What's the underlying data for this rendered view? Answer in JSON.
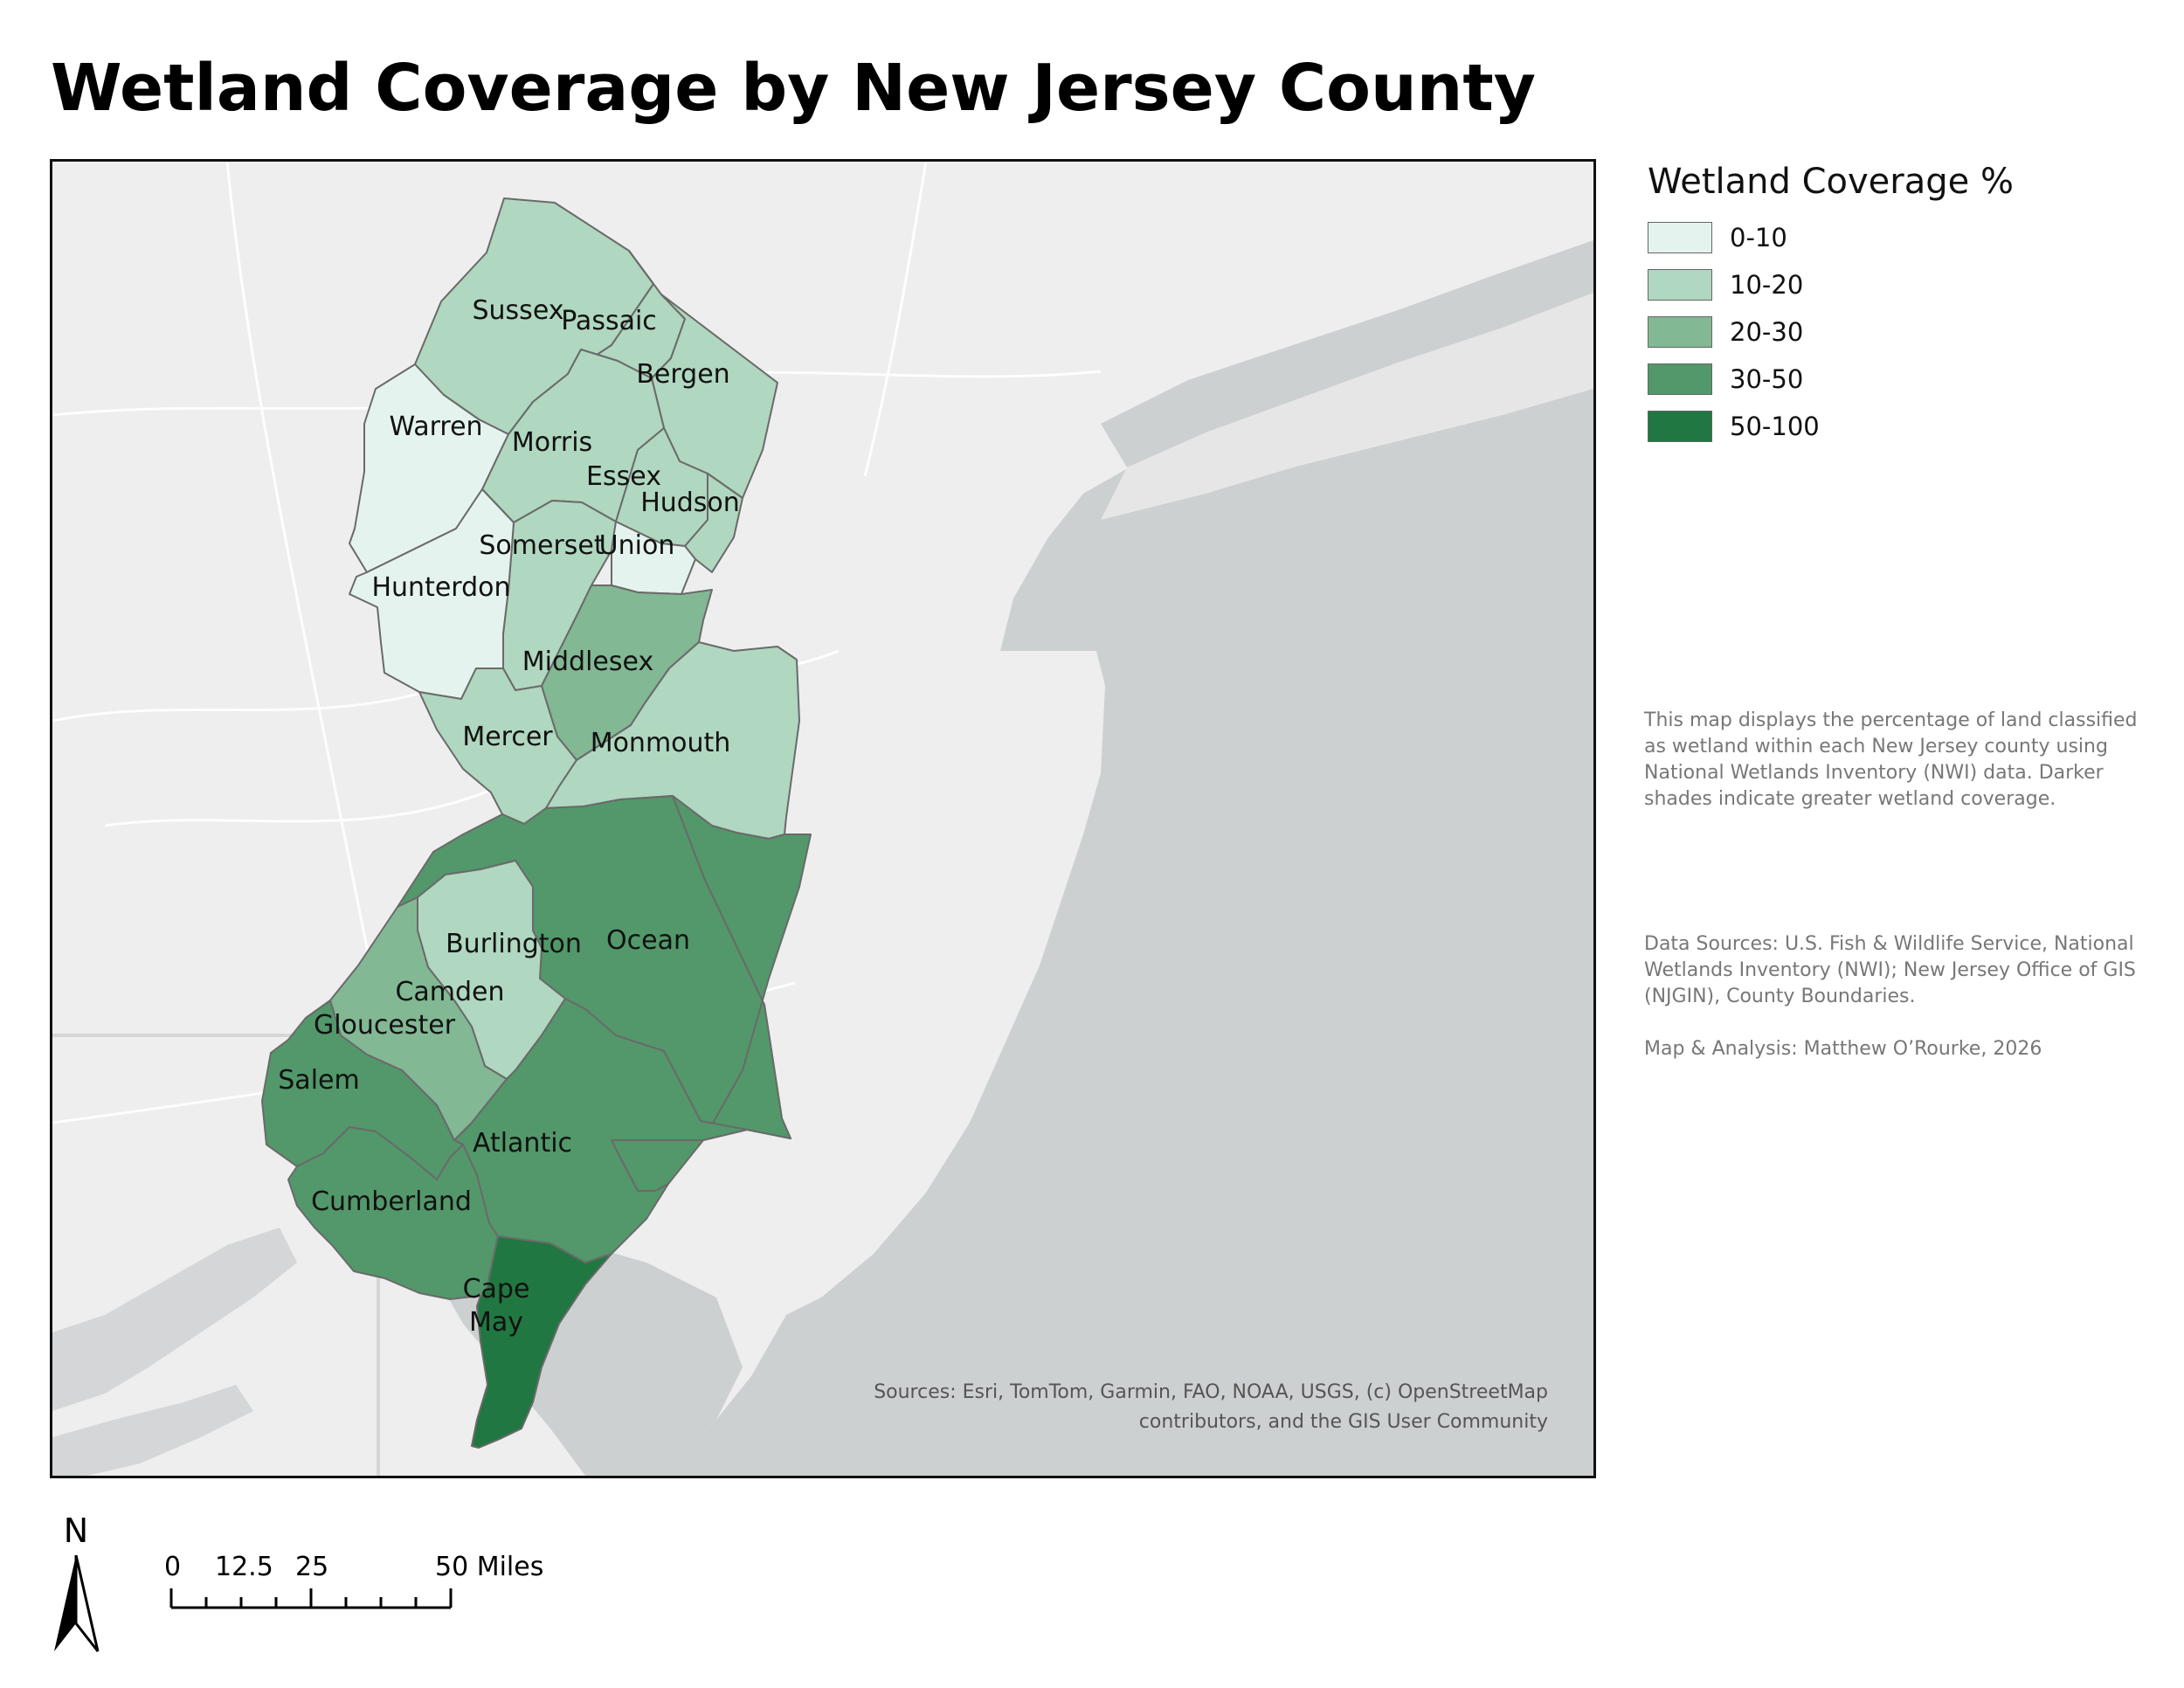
{
  "title": "Wetland Coverage by New Jersey County",
  "legend": {
    "title": "Wetland Coverage %",
    "items": [
      {
        "label": "0-10",
        "color": "#e4f3ee"
      },
      {
        "label": "10-20",
        "color": "#b0d7bf"
      },
      {
        "label": "20-30",
        "color": "#82b894"
      },
      {
        "label": "30-50",
        "color": "#52986a"
      },
      {
        "label": "50-100",
        "color": "#217741"
      }
    ]
  },
  "counties": [
    {
      "name": "Sussex",
      "label": "Sussex",
      "class": "10-20"
    },
    {
      "name": "Passaic",
      "label": "Passaic",
      "class": "10-20"
    },
    {
      "name": "Bergen",
      "label": "Bergen",
      "class": "10-20"
    },
    {
      "name": "Warren",
      "label": "Warren",
      "class": "0-10"
    },
    {
      "name": "Morris",
      "label": "Morris",
      "class": "10-20"
    },
    {
      "name": "Essex",
      "label": "Essex",
      "class": "10-20"
    },
    {
      "name": "Hudson",
      "label": "Hudson",
      "class": "10-20"
    },
    {
      "name": "Somerset",
      "label": "Somerset",
      "class": "10-20"
    },
    {
      "name": "Union",
      "label": "Union",
      "class": "0-10"
    },
    {
      "name": "Hunterdon",
      "label": "Hunterdon",
      "class": "0-10"
    },
    {
      "name": "Middlesex",
      "label": "Middlesex",
      "class": "20-30"
    },
    {
      "name": "Mercer",
      "label": "Mercer",
      "class": "10-20"
    },
    {
      "name": "Monmouth",
      "label": "Monmouth",
      "class": "10-20"
    },
    {
      "name": "Burlington",
      "label": "Burlington",
      "class": "30-50"
    },
    {
      "name": "Ocean",
      "label": "Ocean",
      "class": "30-50"
    },
    {
      "name": "Camden",
      "label": "Camden",
      "class": "10-20"
    },
    {
      "name": "Gloucester",
      "label": "Gloucester",
      "class": "20-30"
    },
    {
      "name": "Salem",
      "label": "Salem",
      "class": "30-50"
    },
    {
      "name": "Atlantic",
      "label": "Atlantic",
      "class": "30-50"
    },
    {
      "name": "Cumberland",
      "label": "Cumberland",
      "class": "30-50"
    },
    {
      "name": "Cape May",
      "label": "Cape May",
      "class": "50-100"
    }
  ],
  "attribution": {
    "line1": "Sources:  Esri, TomTom, Garmin, FAO, NOAA, USGS, (c) OpenStreetMap",
    "line2": "contributors, and the GIS User Community"
  },
  "description": "This map displays the percentage of land classified as wetland within each New Jersey county using National Wetlands Inventory (NWI) data. Darker shades indicate greater wetland coverage.",
  "sources": "Data Sources: U.S. Fish & Wildlife Service, National Wetlands Inventory (NWI); New Jersey Office of GIS (NJGIN), County Boundaries.",
  "credit": "Map & Analysis: Matthew O’Rourke, 2026",
  "north_arrow": {
    "label": "N"
  },
  "scale_bar": {
    "labels": [
      "0",
      "12.5",
      "25",
      "50 Miles"
    ]
  }
}
